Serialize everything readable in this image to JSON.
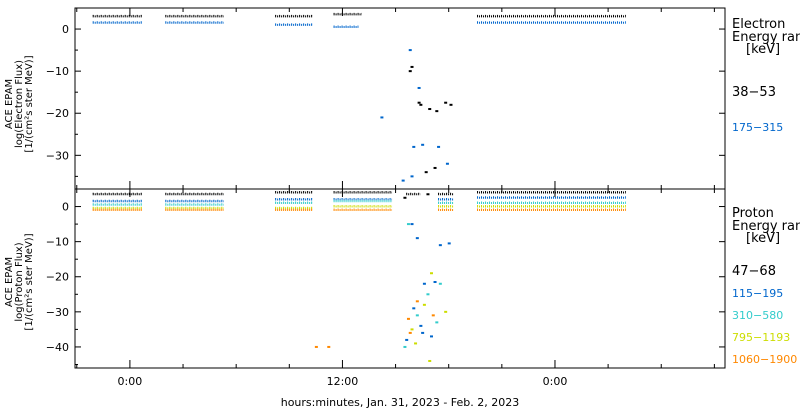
{
  "chart_data": [
    {
      "type": "scatter",
      "panel": "electron",
      "ylabel": [
        "ACE EPAM",
        "log(Electron Flux)",
        "[1/(cm²s ster MeV)]"
      ],
      "legend_title": [
        "Electron",
        "Energy ran",
        "[keV]"
      ],
      "ylim": [
        -38,
        5
      ],
      "yticks": [
        0,
        -10,
        -20,
        -30
      ],
      "ytick_labels": [
        "0",
        "−10",
        "−20",
        "−30"
      ],
      "series": [
        {
          "name": "38-53",
          "color": "#000000",
          "segments": [
            {
              "x0": -2.1,
              "x1": 0.7,
              "y": 3.0
            },
            {
              "x0": 2.0,
              "x1": 5.3,
              "y": 3.0
            },
            {
              "x0": 8.2,
              "x1": 10.3,
              "y": 3.0
            },
            {
              "x0": 11.5,
              "x1": 13.1,
              "y": 3.5
            },
            {
              "x0": 19.6,
              "x1": 28.0,
              "y": 3.0
            }
          ],
          "points": [
            [
              15.9,
              -9
            ],
            [
              16.3,
              -17.5
            ],
            [
              16.9,
              -19
            ],
            [
              17.3,
              -19.5
            ],
            [
              17.8,
              -17.5
            ],
            [
              18.1,
              -18
            ],
            [
              16.7,
              -34
            ],
            [
              17.2,
              -33
            ],
            [
              15.8,
              -10
            ],
            [
              16.4,
              -18
            ]
          ]
        },
        {
          "name": "175-315",
          "color": "#0066cc",
          "segments": [
            {
              "x0": -2.1,
              "x1": 0.7,
              "y": 1.5
            },
            {
              "x0": 2.0,
              "x1": 5.3,
              "y": 1.5
            },
            {
              "x0": 8.2,
              "x1": 10.3,
              "y": 1.0
            },
            {
              "x0": 11.5,
              "x1": 12.9,
              "y": 0.5
            },
            {
              "x0": 19.6,
              "x1": 28.0,
              "y": 1.5
            }
          ],
          "points": [
            [
              14.2,
              -21
            ],
            [
              15.8,
              -5
            ],
            [
              16.0,
              -28
            ],
            [
              16.5,
              -27.5
            ],
            [
              17.4,
              -28
            ],
            [
              17.9,
              -32
            ],
            [
              15.4,
              -36
            ],
            [
              15.9,
              -35
            ],
            [
              16.3,
              -14
            ]
          ]
        }
      ]
    },
    {
      "type": "scatter",
      "panel": "proton",
      "ylabel": [
        "ACE EPAM",
        "log(Proton Flux)",
        "[1/(cm²s ster MeV)]"
      ],
      "legend_title": [
        "Proton",
        "Energy ran",
        "[keV]"
      ],
      "ylim": [
        -46,
        5
      ],
      "yticks": [
        0,
        -10,
        -20,
        -30,
        -40
      ],
      "ytick_labels": [
        "0",
        "−10",
        "−20",
        "−30",
        "−40"
      ],
      "series": [
        {
          "name": "47-68",
          "color": "#000000",
          "segments": [
            {
              "x0": -2.1,
              "x1": 0.7,
              "y": 3.5
            },
            {
              "x0": 2.0,
              "x1": 5.3,
              "y": 3.5
            },
            {
              "x0": 8.2,
              "x1": 10.3,
              "y": 4.0
            },
            {
              "x0": 11.5,
              "x1": 14.8,
              "y": 4.0
            },
            {
              "x0": 15.6,
              "x1": 16.4,
              "y": 3.5
            },
            {
              "x0": 17.4,
              "x1": 18.3,
              "y": 3.5
            },
            {
              "x0": 19.6,
              "x1": 28.0,
              "y": 4.0
            }
          ],
          "points": [
            [
              15.5,
              2.5
            ],
            [
              16.8,
              3.5
            ]
          ]
        },
        {
          "name": "115-195",
          "color": "#0066cc",
          "segments": [
            {
              "x0": -2.1,
              "x1": 0.7,
              "y": 1.5
            },
            {
              "x0": 2.0,
              "x1": 5.3,
              "y": 1.5
            },
            {
              "x0": 8.2,
              "x1": 10.3,
              "y": 2.0
            },
            {
              "x0": 11.5,
              "x1": 14.8,
              "y": 2.0
            },
            {
              "x0": 17.4,
              "x1": 18.3,
              "y": 2.0
            },
            {
              "x0": 19.6,
              "x1": 28.0,
              "y": 2.5
            }
          ],
          "points": [
            [
              15.9,
              -5
            ],
            [
              16.2,
              -9
            ],
            [
              17.5,
              -11
            ],
            [
              18.0,
              -10.5
            ],
            [
              16.6,
              -22
            ],
            [
              17.2,
              -21.5
            ],
            [
              16.0,
              -29
            ],
            [
              16.4,
              -34
            ],
            [
              17.0,
              -37
            ],
            [
              15.6,
              -38
            ],
            [
              16.5,
              -36
            ]
          ]
        },
        {
          "name": "310-580",
          "color": "#33cccc",
          "segments": [
            {
              "x0": -2.1,
              "x1": 0.7,
              "y": 0.5
            },
            {
              "x0": 2.0,
              "x1": 5.3,
              "y": 0.5
            },
            {
              "x0": 8.2,
              "x1": 10.3,
              "y": 1.0
            },
            {
              "x0": 11.5,
              "x1": 14.8,
              "y": 1.5
            },
            {
              "x0": 17.4,
              "x1": 18.3,
              "y": 1.0
            },
            {
              "x0": 19.6,
              "x1": 28.0,
              "y": 1.0
            }
          ],
          "points": [
            [
              15.7,
              -5
            ],
            [
              17.5,
              -22
            ],
            [
              16.8,
              -25
            ],
            [
              16.2,
              -31
            ],
            [
              17.3,
              -33
            ],
            [
              15.5,
              -40
            ]
          ]
        },
        {
          "name": "795-1193",
          "color": "#ccdd00",
          "segments": [
            {
              "x0": -2.1,
              "x1": 0.7,
              "y": -0.5
            },
            {
              "x0": 2.0,
              "x1": 5.3,
              "y": -0.5
            },
            {
              "x0": 8.2,
              "x1": 10.3,
              "y": -0.5
            },
            {
              "x0": 11.5,
              "x1": 14.8,
              "y": 0.0
            },
            {
              "x0": 17.4,
              "x1": 18.3,
              "y": 0.0
            },
            {
              "x0": 19.6,
              "x1": 28.0,
              "y": 0.0
            }
          ],
          "points": [
            [
              17.0,
              -19
            ],
            [
              16.6,
              -28
            ],
            [
              17.8,
              -30
            ],
            [
              15.9,
              -35
            ],
            [
              16.9,
              -44
            ],
            [
              16.1,
              -39
            ]
          ]
        },
        {
          "name": "1060-1900",
          "color": "#ff8800",
          "segments": [
            {
              "x0": -2.1,
              "x1": 0.7,
              "y": -1.0
            },
            {
              "x0": 2.0,
              "x1": 5.3,
              "y": -1.0
            },
            {
              "x0": 8.2,
              "x1": 10.3,
              "y": -1.0
            },
            {
              "x0": 11.5,
              "x1": 14.8,
              "y": -1.0
            },
            {
              "x0": 17.4,
              "x1": 18.3,
              "y": -1.0
            },
            {
              "x0": 19.6,
              "x1": 28.0,
              "y": -1.0
            }
          ],
          "points": [
            [
              10.5,
              -40
            ],
            [
              11.2,
              -40
            ],
            [
              16.2,
              -27
            ],
            [
              15.7,
              -32
            ],
            [
              17.1,
              -31
            ],
            [
              15.8,
              -36
            ]
          ]
        }
      ]
    }
  ],
  "x_axis": {
    "unit": "hours relative to 00:00, Jan. 31, 2023",
    "xlim": [
      -3.1,
      33.6
    ],
    "ticks": [
      0,
      12,
      24
    ],
    "tick_labels": [
      "0:00",
      "12:00",
      "0:00"
    ],
    "title": "hours:minutes, Jan. 31, 2023 - Feb.  2, 2023"
  }
}
